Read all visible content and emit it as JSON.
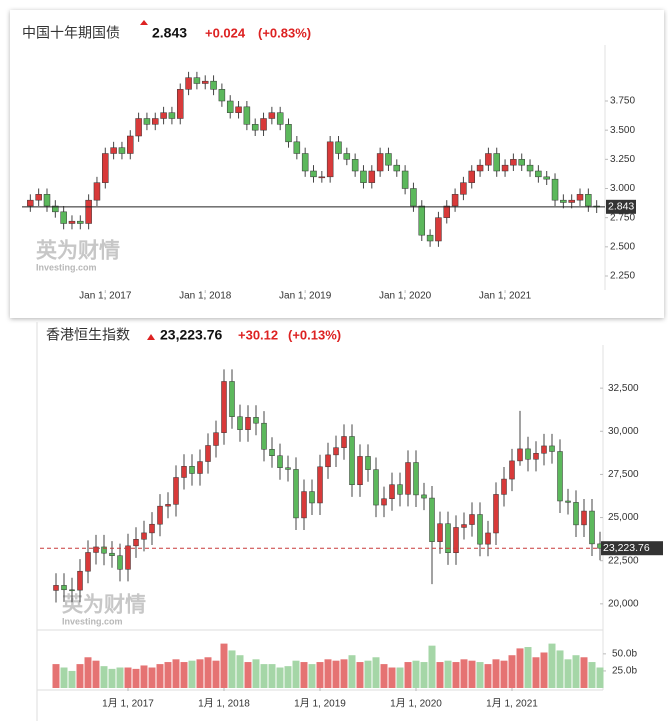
{
  "chart_data": [
    {
      "type": "candlestick",
      "title": "中国十年期国债",
      "last": 2.843,
      "change": "+0.024",
      "change_pct": "(+0.83%)",
      "watermark": "英为财情",
      "watermark_sub": "Investing.com",
      "up_color": "#d83a3a",
      "down_color": "#5cb85c",
      "last_line_color": "#222",
      "x": [
        "2016-04",
        "2016-05",
        "2016-06",
        "2016-07",
        "2016-08",
        "2016-09",
        "2016-10",
        "2016-11",
        "2016-12",
        "2017-01",
        "2017-02",
        "2017-03",
        "2017-04",
        "2017-05",
        "2017-06",
        "2017-07",
        "2017-08",
        "2017-09",
        "2017-10",
        "2017-11",
        "2017-12",
        "2018-01",
        "2018-02",
        "2018-03",
        "2018-04",
        "2018-05",
        "2018-06",
        "2018-07",
        "2018-08",
        "2018-09",
        "2018-10",
        "2018-11",
        "2018-12",
        "2019-01",
        "2019-02",
        "2019-03",
        "2019-04",
        "2019-05",
        "2019-06",
        "2019-07",
        "2019-08",
        "2019-09",
        "2019-10",
        "2019-11",
        "2019-12",
        "2020-01",
        "2020-02",
        "2020-03",
        "2020-04",
        "2020-05",
        "2020-06",
        "2020-07",
        "2020-08",
        "2020-09",
        "2020-10",
        "2020-11",
        "2020-12",
        "2021-01",
        "2021-02",
        "2021-03",
        "2021-04",
        "2021-05",
        "2021-06",
        "2021-07",
        "2021-08",
        "2021-09",
        "2021-10",
        "2021-11",
        "2021-12"
      ],
      "open": [
        2.85,
        2.9,
        2.95,
        2.85,
        2.8,
        2.7,
        2.72,
        2.7,
        2.9,
        3.05,
        3.3,
        3.35,
        3.3,
        3.45,
        3.6,
        3.55,
        3.6,
        3.65,
        3.6,
        3.85,
        3.95,
        3.9,
        3.92,
        3.85,
        3.75,
        3.65,
        3.7,
        3.55,
        3.5,
        3.6,
        3.65,
        3.55,
        3.4,
        3.3,
        3.15,
        3.1,
        3.1,
        3.4,
        3.3,
        3.25,
        3.15,
        3.05,
        3.15,
        3.3,
        3.2,
        3.15,
        3.0,
        2.85,
        2.6,
        2.55,
        2.75,
        2.85,
        2.95,
        3.05,
        3.15,
        3.2,
        3.3,
        3.15,
        3.2,
        3.25,
        3.2,
        3.15,
        3.1,
        3.08,
        2.9,
        2.88,
        2.9,
        2.95,
        2.85
      ],
      "high": [
        2.95,
        3.0,
        3.0,
        2.9,
        2.85,
        2.77,
        2.77,
        2.95,
        3.1,
        3.35,
        3.4,
        3.4,
        3.5,
        3.65,
        3.65,
        3.65,
        3.7,
        3.7,
        3.9,
        4.0,
        4.0,
        3.97,
        3.97,
        3.9,
        3.8,
        3.75,
        3.75,
        3.6,
        3.65,
        3.7,
        3.7,
        3.6,
        3.45,
        3.35,
        3.2,
        3.15,
        3.45,
        3.45,
        3.35,
        3.3,
        3.2,
        3.2,
        3.35,
        3.35,
        3.25,
        3.2,
        3.05,
        2.9,
        2.65,
        2.8,
        2.9,
        3.0,
        3.1,
        3.2,
        3.25,
        3.35,
        3.35,
        3.25,
        3.3,
        3.3,
        3.25,
        3.2,
        3.15,
        3.13,
        2.95,
        2.95,
        3.0,
        3.0,
        2.9
      ],
      "low": [
        2.8,
        2.85,
        2.8,
        2.75,
        2.65,
        2.65,
        2.65,
        2.65,
        2.85,
        3.0,
        3.25,
        3.25,
        3.25,
        3.4,
        3.5,
        3.5,
        3.55,
        3.55,
        3.55,
        3.8,
        3.85,
        3.85,
        3.8,
        3.7,
        3.6,
        3.6,
        3.5,
        3.45,
        3.45,
        3.55,
        3.5,
        3.35,
        3.25,
        3.1,
        3.05,
        3.05,
        3.05,
        3.25,
        3.2,
        3.1,
        3.0,
        3.0,
        3.1,
        3.15,
        3.1,
        2.95,
        2.8,
        2.55,
        2.5,
        2.5,
        2.7,
        2.8,
        2.9,
        3.0,
        3.1,
        3.15,
        3.1,
        3.1,
        3.15,
        3.15,
        3.1,
        3.05,
        3.03,
        2.85,
        2.83,
        2.83,
        2.85,
        2.8,
        2.79
      ],
      "close": [
        2.9,
        2.95,
        2.85,
        2.8,
        2.7,
        2.72,
        2.7,
        2.9,
        3.05,
        3.3,
        3.35,
        3.3,
        3.45,
        3.6,
        3.55,
        3.6,
        3.65,
        3.6,
        3.85,
        3.95,
        3.9,
        3.92,
        3.85,
        3.75,
        3.65,
        3.7,
        3.55,
        3.5,
        3.6,
        3.65,
        3.55,
        3.4,
        3.3,
        3.15,
        3.1,
        3.1,
        3.4,
        3.3,
        3.25,
        3.15,
        3.05,
        3.15,
        3.3,
        3.2,
        3.15,
        3.0,
        2.85,
        2.6,
        2.55,
        2.75,
        2.85,
        2.95,
        3.05,
        3.15,
        3.2,
        3.3,
        3.15,
        3.2,
        3.25,
        3.2,
        3.15,
        3.1,
        3.08,
        2.9,
        2.88,
        2.9,
        2.95,
        2.85,
        2.843
      ],
      "xlim": [
        "2016-03",
        "2022-01"
      ],
      "xticks": [
        {
          "value": "2017-01",
          "label": "Jan 1, 2017"
        },
        {
          "value": "2018-01",
          "label": "Jan 1, 2018"
        },
        {
          "value": "2019-01",
          "label": "Jan 1, 2019"
        },
        {
          "value": "2020-01",
          "label": "Jan 1, 2020"
        },
        {
          "value": "2021-01",
          "label": "Jan 1, 2021"
        }
      ],
      "ylim": [
        2.13,
        4.23
      ],
      "yticks": [
        {
          "value": 2.25,
          "label": "2.250"
        },
        {
          "value": 2.5,
          "label": "2.500"
        },
        {
          "value": 2.75,
          "label": "2.750"
        },
        {
          "value": 3,
          "label": "3.000"
        },
        {
          "value": 3.25,
          "label": "3.250"
        },
        {
          "value": 3.5,
          "label": "3.500"
        },
        {
          "value": 3.75,
          "label": "3.750"
        }
      ]
    },
    {
      "type": "candlestick",
      "title": "香港恒生指数",
      "last": 23223.76,
      "last_label": "23,223.76",
      "change": "+30.12",
      "change_pct": "(+0.13%)",
      "watermark": "英为财情",
      "watermark_sub": "Investing.com",
      "up_color": "#d83a3a",
      "down_color": "#5cb85c",
      "last_line_color": "#c83a3a",
      "volume_up_color": "#e57373",
      "volume_down_color": "#a5d6a7",
      "x": [
        "2016-04",
        "2016-05",
        "2016-06",
        "2016-07",
        "2016-08",
        "2016-09",
        "2016-10",
        "2016-11",
        "2016-12",
        "2017-01",
        "2017-02",
        "2017-03",
        "2017-04",
        "2017-05",
        "2017-06",
        "2017-07",
        "2017-08",
        "2017-09",
        "2017-10",
        "2017-11",
        "2017-12",
        "2018-01",
        "2018-02",
        "2018-03",
        "2018-04",
        "2018-05",
        "2018-06",
        "2018-07",
        "2018-08",
        "2018-09",
        "2018-10",
        "2018-11",
        "2018-12",
        "2019-01",
        "2019-02",
        "2019-03",
        "2019-04",
        "2019-05",
        "2019-06",
        "2019-07",
        "2019-08",
        "2019-09",
        "2019-10",
        "2019-11",
        "2019-12",
        "2020-01",
        "2020-02",
        "2020-03",
        "2020-04",
        "2020-05",
        "2020-06",
        "2020-07",
        "2020-08",
        "2020-09",
        "2020-10",
        "2020-11",
        "2020-12",
        "2021-01",
        "2021-02",
        "2021-03",
        "2021-04",
        "2021-05",
        "2021-06",
        "2021-07",
        "2021-08",
        "2021-09",
        "2021-10",
        "2021-11",
        "2021-12"
      ],
      "open": [
        20777,
        21070,
        20815,
        20794,
        21891,
        22977,
        23297,
        22935,
        22790,
        22001,
        23361,
        23741,
        24112,
        24615,
        25661,
        25765,
        27323,
        27970,
        27554,
        28246,
        29177,
        29919,
        32887,
        30845,
        30093,
        30808,
        30469,
        28955,
        28583,
        27889,
        27789,
        24980,
        26507,
        25846,
        27942,
        28633,
        29051,
        29699,
        26901,
        28543,
        27778,
        25725,
        26092,
        26907,
        26346,
        28190,
        26313,
        26130,
        23603,
        24644,
        22961,
        24427,
        24595,
        25177,
        23459,
        24107,
        26341,
        27231,
        28284,
        28980,
        28378,
        28725,
        29151,
        28828,
        25961,
        25879,
        24576,
        25377,
        23475
      ],
      "high": [
        21770,
        21770,
        21515,
        22591,
        23677,
        23997,
        23997,
        23635,
        23490,
        24061,
        24441,
        24812,
        25315,
        26361,
        26465,
        28023,
        28670,
        28670,
        28946,
        29877,
        30619,
        33587,
        33587,
        31545,
        31508,
        31508,
        31169,
        29655,
        29283,
        28589,
        28489,
        27207,
        27207,
        28642,
        29333,
        29751,
        30399,
        30399,
        29243,
        29243,
        28478,
        26792,
        27607,
        27607,
        28890,
        28890,
        27013,
        26830,
        25344,
        25344,
        25127,
        25295,
        25877,
        25877,
        24807,
        27041,
        27931,
        28984,
        31183,
        29680,
        29425,
        29851,
        29851,
        29528,
        26661,
        26579,
        26077,
        26077,
        24175
      ],
      "low": [
        20077,
        20115,
        20094,
        20094,
        21191,
        22277,
        22235,
        22090,
        21301,
        21301,
        22661,
        23041,
        23412,
        23915,
        24961,
        25065,
        26623,
        26854,
        26854,
        27546,
        28477,
        29219,
        30145,
        29393,
        29393,
        29769,
        28255,
        27883,
        27189,
        27089,
        24280,
        24280,
        25146,
        25146,
        27242,
        27933,
        28351,
        26201,
        26201,
        27078,
        25025,
        25025,
        25392,
        25646,
        25646,
        25613,
        25430,
        21139,
        22903,
        22261,
        22261,
        23727,
        23895,
        22759,
        22759,
        23407,
        25641,
        26531,
        28000,
        27678,
        27678,
        28025,
        28128,
        25261,
        25179,
        23876,
        23876,
        22775,
        22523
      ],
      "close": [
        21070,
        20815,
        20794,
        21891,
        22977,
        23297,
        22935,
        22790,
        22001,
        23361,
        23741,
        24112,
        24615,
        25661,
        25765,
        27323,
        27970,
        27554,
        28246,
        29177,
        29919,
        32887,
        30845,
        30093,
        30808,
        30469,
        28955,
        28583,
        27889,
        27789,
        24980,
        26507,
        25846,
        27942,
        28633,
        29051,
        29699,
        26901,
        28543,
        27778,
        25725,
        26092,
        26907,
        26346,
        28190,
        26313,
        26130,
        23603,
        24644,
        22961,
        24427,
        24595,
        25177,
        23459,
        24107,
        26341,
        27231,
        28284,
        28980,
        28378,
        28725,
        29151,
        28828,
        25961,
        25879,
        24576,
        25377,
        23475,
        23223.76
      ],
      "volume": [
        35,
        30,
        25,
        35,
        45,
        40,
        32,
        28,
        30,
        30,
        28,
        33,
        30,
        35,
        38,
        42,
        38,
        40,
        42,
        45,
        40,
        65,
        55,
        48,
        38,
        42,
        35,
        35,
        30,
        32,
        40,
        38,
        35,
        38,
        42,
        40,
        42,
        48,
        38,
        40,
        45,
        35,
        30,
        30,
        38,
        40,
        38,
        62,
        38,
        40,
        38,
        42,
        40,
        38,
        35,
        42,
        40,
        48,
        58,
        60,
        45,
        52,
        65,
        55,
        42,
        48,
        45,
        38,
        30
      ],
      "xlim": [
        "2016-02",
        "2021-12"
      ],
      "xticks": [
        {
          "value": "2017-01",
          "label": "1月 1, 2017"
        },
        {
          "value": "2018-01",
          "label": "1月 1, 2018"
        },
        {
          "value": "2019-01",
          "label": "1月 1, 2019"
        },
        {
          "value": "2020-01",
          "label": "1月 1, 2020"
        },
        {
          "value": "2021-01",
          "label": "1月 1, 2021"
        }
      ],
      "ylim": [
        18600,
        35000
      ],
      "yticks": [
        {
          "value": 20000,
          "label": "20,000"
        },
        {
          "value": 22500,
          "label": "22,500"
        },
        {
          "value": 25000,
          "label": "25,000"
        },
        {
          "value": 27500,
          "label": "27,500"
        },
        {
          "value": 30000,
          "label": "30,000"
        },
        {
          "value": 32500,
          "label": "32,500"
        }
      ],
      "volume_ylim": [
        0,
        82
      ],
      "volume_yticks": [
        {
          "value": 25,
          "label": "25.0b"
        },
        {
          "value": 50,
          "label": "50.0b"
        }
      ]
    }
  ]
}
